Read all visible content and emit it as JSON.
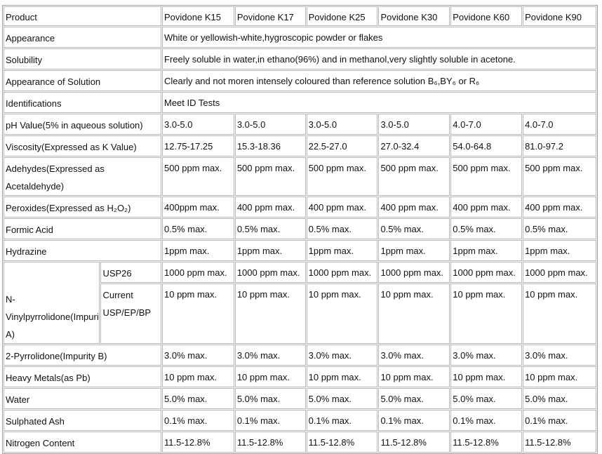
{
  "table": {
    "header": [
      "Product",
      "Povidone K15",
      "Povidone K17",
      "Povidone K25",
      "Povidone K30",
      "Povidone K60",
      "Povidone K90"
    ],
    "rows": [
      {
        "label": "Appearance",
        "cells": [
          "White or yellowish-white,hygroscopic powder or flakes"
        ]
      },
      {
        "label": "Solubility",
        "cells": [
          "Freely soluble in water,in ethano(96%) and in methanol,very slightly soluble in acetone."
        ]
      },
      {
        "label": "Appearance of Solution",
        "cells": [
          "Clearly and not moren intensely coloured than reference solution B₆,BY₆ or R₆"
        ]
      },
      {
        "label": "Identifications",
        "cells": [
          "Meet ID Tests"
        ]
      },
      {
        "label": "pH Value(5% in aqueous solution)",
        "cells": [
          "3.0-5.0",
          "3.0-5.0",
          "3.0-5.0",
          "3.0-5.0",
          "4.0-7.0",
          "4.0-7.0"
        ]
      },
      {
        "label": "Viscosity(Expressed as K Value)",
        "cells": [
          "12.75-17.25",
          "15.3-18.36",
          "22.5-27.0",
          "27.0-32.4",
          "54.0-64.8",
          "81.0-97.2"
        ]
      },
      {
        "label": "Adehydes(Expressed as Acetaldehyde)",
        "cells": [
          "500 ppm max.",
          "500 ppm max.",
          "500 ppm max.",
          "500 ppm max.",
          "500 ppm max.",
          "500 ppm max."
        ]
      },
      {
        "label": "Peroxides(Expressed as H₂O₂)",
        "cells": [
          "400ppm max.",
          "400 ppm max.",
          "400 ppm max.",
          "400 ppm max.",
          "400 ppm max.",
          "400 ppm max."
        ]
      },
      {
        "label": "Formic Acid",
        "cells": [
          "0.5% max.",
          "0.5% max.",
          "0.5% max.",
          "0.5% max.",
          "0.5% max.",
          "0.5% max."
        ]
      },
      {
        "label": "Hydrazine",
        "cells": [
          "1ppm max.",
          "1ppm max.",
          "1ppm max.",
          "1ppm max.",
          "1ppm max.",
          "1ppm max."
        ]
      },
      {
        "label": "N-Vinylpyrrolidone(Impurity A)",
        "subrows": [
          {
            "label": "USP26",
            "cells": [
              "1000 ppm max.",
              "1000 ppm max.",
              "1000 ppm max.",
              "1000 ppm max.",
              "1000 ppm max.",
              "1000 ppm max."
            ]
          },
          {
            "label": "Current USP/EP/BP",
            "cells": [
              "10 ppm max.",
              "10 ppm max.",
              "10 ppm max.",
              "10 ppm max.",
              "10 ppm max.",
              "10 ppm max."
            ]
          }
        ]
      },
      {
        "label": "2-Pyrrolidone(Impurity B)",
        "cells": [
          "3.0% max.",
          "3.0% max.",
          "3.0% max.",
          "3.0% max.",
          "3.0% max.",
          "3.0% max."
        ]
      },
      {
        "label": "Heavy Metals(as Pb)",
        "cells": [
          "10 ppm max.",
          "10 ppm max.",
          "10 ppm max.",
          "10 ppm max.",
          "10 ppm max.",
          "10 ppm max."
        ]
      },
      {
        "label": "Water",
        "cells": [
          "5.0% max.",
          "5.0% max.",
          "5.0% max.",
          "5.0% max.",
          "5.0% max.",
          "5.0% max."
        ]
      },
      {
        "label": "Sulphated Ash",
        "cells": [
          "0.1% max.",
          "0.1% max.",
          "0.1% max.",
          "0.1% max.",
          "0.1% max.",
          "0.1% max."
        ]
      },
      {
        "label": "Nitrogen Content",
        "cells": [
          "11.5-12.8%",
          "11.5-12.8%",
          "11.5-12.8%",
          "11.5-12.8%",
          "11.5-12.8%",
          "11.5-12.8%"
        ]
      }
    ]
  }
}
